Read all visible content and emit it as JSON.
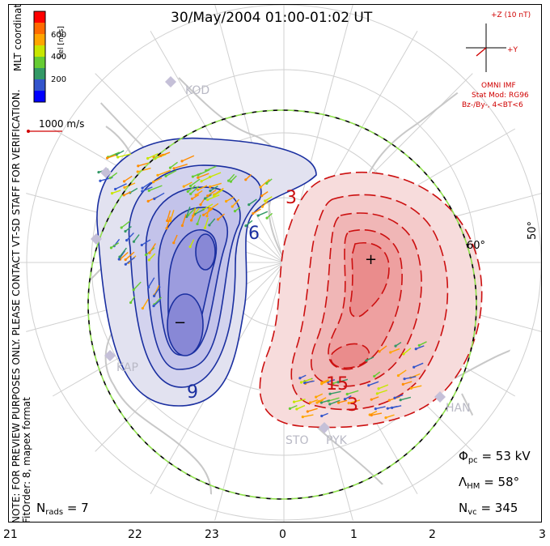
{
  "title": "30/May/2004 01:00-01:02 UT",
  "coord_label": "MLT coordinates",
  "note": "NOTE: FOR PREVIEW PURPOSES ONLY. PLEASE CONTACT VT-SD STAFF FOR VERIFICATION.",
  "fit_order": "FitOrder: 8, mapex format",
  "color_bar": {
    "label": "Vel [m/s]",
    "ticks": [
      "600",
      "400",
      "200"
    ],
    "colors": [
      "#ff0000",
      "#ff6a00",
      "#ffa500",
      "#c8e600",
      "#66cc33",
      "#339966",
      "#3355cc",
      "#0000ff"
    ]
  },
  "velocity_scale": "1000 m/s",
  "imf": {
    "z_label": "+Z (10 nT)",
    "y_label": "+Y",
    "source": "OMNI IMF",
    "stat_mod": "Stat Mod: RG96",
    "condition": "Bz-/By-, 4<BT<6"
  },
  "stats": {
    "phi_symbol": "Φ",
    "phi_sub": "pc",
    "phi_value": "= 53 kV",
    "lambda_symbol": "Λ",
    "lambda_sub": "HM",
    "lambda_value": "= 58°",
    "nvc_symbol": "N",
    "nvc_sub": "vc",
    "nvc_value": "= 345",
    "nrads_symbol": "N",
    "nrads_sub": "rads",
    "nrads_value": "= 7"
  },
  "latitude_labels": [
    "60°",
    "50°"
  ],
  "mlt_ticks": [
    "21",
    "22",
    "23",
    "0",
    "1",
    "2",
    "3"
  ],
  "radar_sites": [
    "KOD",
    "KAP",
    "STO",
    "PYK",
    "HAN"
  ],
  "contour_labels": {
    "neg": [
      "6",
      "9"
    ],
    "pos": [
      "3",
      "15",
      "3"
    ],
    "min_marker": "−",
    "max_marker": "+"
  }
}
